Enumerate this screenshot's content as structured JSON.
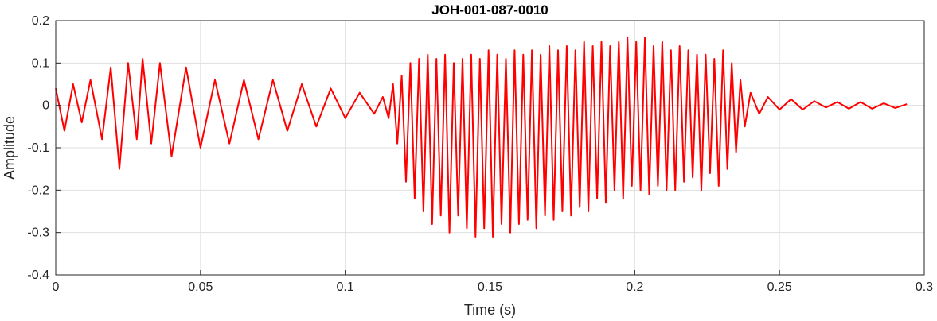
{
  "chart_data": {
    "type": "line",
    "title": "JOH-001-087-0010",
    "xlabel": "Time (s)",
    "ylabel": "Amplitude",
    "xlim": [
      0,
      0.3
    ],
    "ylim": [
      -0.4,
      0.2
    ],
    "xticks": [
      0,
      0.05,
      0.1,
      0.15,
      0.2,
      0.25,
      0.3
    ],
    "yticks": [
      -0.4,
      -0.3,
      -0.2,
      -0.1,
      0,
      0.1,
      0.2
    ],
    "xtick_labels": [
      "0",
      "0.05",
      "0.1",
      "0.15",
      "0.2",
      "0.25",
      "0.3"
    ],
    "ytick_labels": [
      "-0.4",
      "-0.3",
      "-0.2",
      "-0.1",
      "0",
      "0.1",
      "0.2"
    ],
    "grid": true,
    "series": [
      {
        "color": "#ff0000",
        "x": [
          0,
          0.003,
          0.006,
          0.009,
          0.012,
          0.016,
          0.019,
          0.022,
          0.025,
          0.028,
          0.03,
          0.033,
          0.036,
          0.04,
          0.045,
          0.05,
          0.055,
          0.06,
          0.065,
          0.07,
          0.075,
          0.08,
          0.085,
          0.09,
          0.095,
          0.1,
          0.105,
          0.11,
          0.113,
          0.115,
          0.1165,
          0.118,
          0.1195,
          0.121,
          0.1225,
          0.124,
          0.1255,
          0.127,
          0.1285,
          0.13,
          0.1315,
          0.133,
          0.1345,
          0.136,
          0.1375,
          0.139,
          0.1405,
          0.142,
          0.1435,
          0.145,
          0.1465,
          0.148,
          0.1495,
          0.151,
          0.1525,
          0.154,
          0.1555,
          0.157,
          0.1585,
          0.16,
          0.1615,
          0.163,
          0.1645,
          0.166,
          0.1675,
          0.169,
          0.1705,
          0.172,
          0.1735,
          0.175,
          0.1765,
          0.178,
          0.1795,
          0.181,
          0.1825,
          0.184,
          0.1855,
          0.187,
          0.1885,
          0.19,
          0.1915,
          0.193,
          0.1945,
          0.196,
          0.1975,
          0.199,
          0.2005,
          0.202,
          0.2035,
          0.205,
          0.2065,
          0.208,
          0.2095,
          0.211,
          0.2125,
          0.214,
          0.2155,
          0.217,
          0.2185,
          0.22,
          0.2215,
          0.223,
          0.2245,
          0.226,
          0.2275,
          0.229,
          0.2305,
          0.232,
          0.2335,
          0.235,
          0.2365,
          0.238,
          0.24,
          0.243,
          0.246,
          0.25,
          0.254,
          0.258,
          0.262,
          0.266,
          0.27,
          0.274,
          0.278,
          0.282,
          0.286,
          0.29,
          0.294
        ],
        "y": [
          0.04,
          -0.06,
          0.05,
          -0.04,
          0.06,
          -0.08,
          0.09,
          -0.15,
          0.1,
          -0.08,
          0.11,
          -0.09,
          0.1,
          -0.12,
          0.09,
          -0.1,
          0.06,
          -0.09,
          0.06,
          -0.08,
          0.06,
          -0.06,
          0.05,
          -0.05,
          0.04,
          -0.03,
          0.03,
          -0.02,
          0.02,
          -0.03,
          0.05,
          -0.09,
          0.07,
          -0.18,
          0.1,
          -0.22,
          0.11,
          -0.25,
          0.12,
          -0.28,
          0.11,
          -0.26,
          0.12,
          -0.3,
          0.1,
          -0.26,
          0.11,
          -0.29,
          0.12,
          -0.31,
          0.11,
          -0.29,
          0.13,
          -0.31,
          0.12,
          -0.28,
          0.11,
          -0.3,
          0.13,
          -0.28,
          0.12,
          -0.27,
          0.13,
          -0.29,
          0.12,
          -0.26,
          0.14,
          -0.27,
          0.13,
          -0.25,
          0.14,
          -0.26,
          0.13,
          -0.24,
          0.15,
          -0.25,
          0.14,
          -0.22,
          0.15,
          -0.23,
          0.14,
          -0.2,
          0.15,
          -0.22,
          0.16,
          -0.19,
          0.15,
          -0.2,
          0.16,
          -0.21,
          0.14,
          -0.19,
          0.15,
          -0.2,
          0.13,
          -0.2,
          0.14,
          -0.18,
          0.13,
          -0.17,
          0.12,
          -0.2,
          0.12,
          -0.16,
          0.11,
          -0.19,
          0.13,
          -0.15,
          0.1,
          -0.11,
          0.06,
          -0.05,
          0.03,
          -0.02,
          0.02,
          -0.01,
          0.015,
          -0.01,
          0.01,
          -0.005,
          0.008,
          -0.008,
          0.008,
          -0.008,
          0.005,
          -0.006,
          0.003
        ]
      }
    ]
  }
}
